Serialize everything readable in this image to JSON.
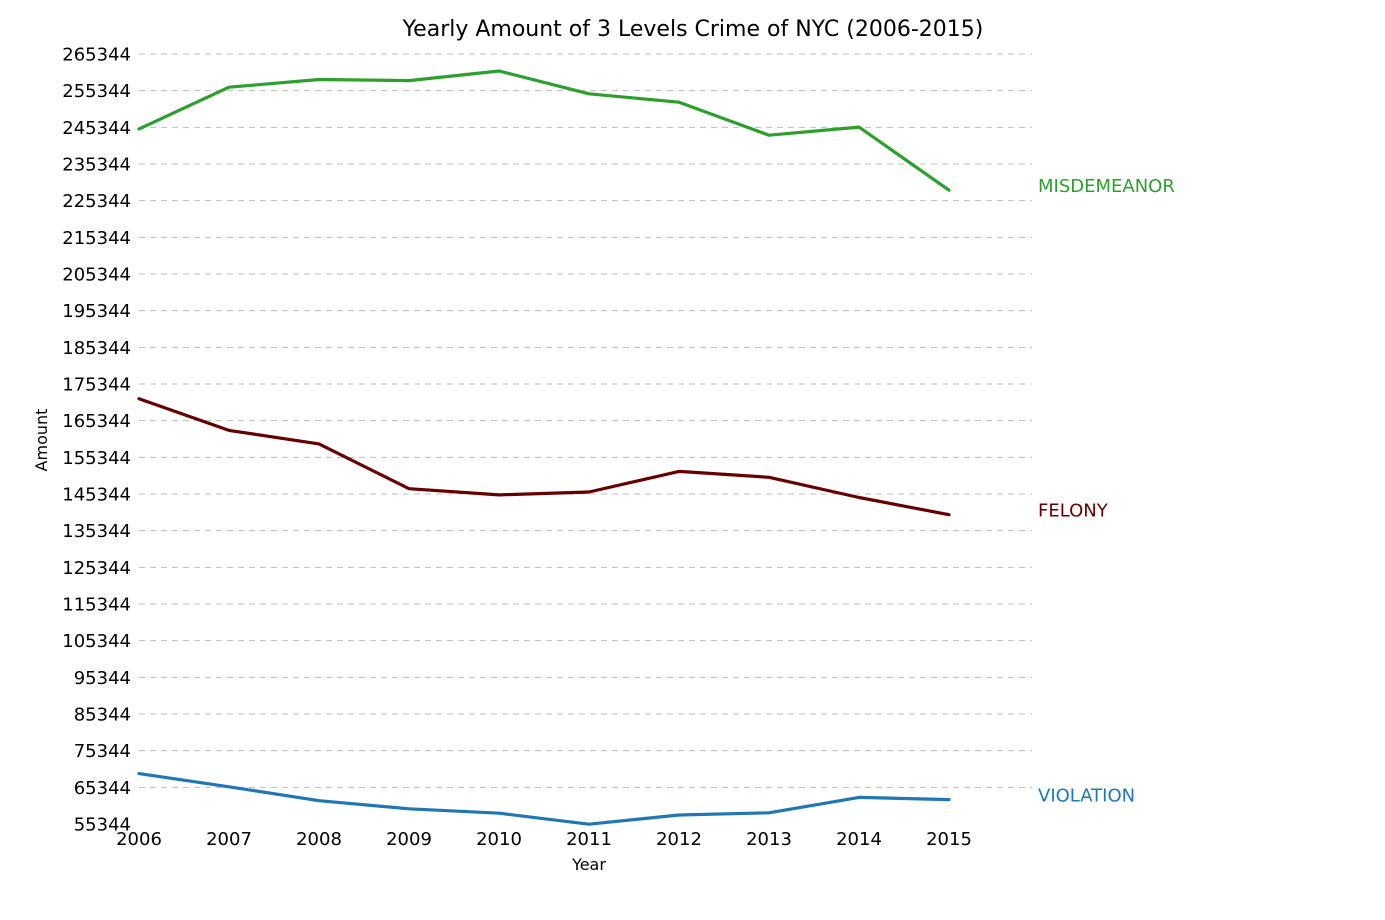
{
  "chart_data": {
    "type": "line",
    "title": "Yearly Amount of 3 Levels Crime of NYC (2006-2015)",
    "xlabel": "Year",
    "ylabel": "Amount",
    "x": [
      2006,
      2007,
      2008,
      2009,
      2010,
      2011,
      2012,
      2013,
      2014,
      2015
    ],
    "x_ticks": [
      "2006",
      "2007",
      "2008",
      "2009",
      "2010",
      "2011",
      "2012",
      "2013",
      "2014",
      "2015"
    ],
    "y_ticks": [
      "55344",
      "65344",
      "75344",
      "85344",
      "95344",
      "105344",
      "115344",
      "125344",
      "135344",
      "145344",
      "155344",
      "165344",
      "175344",
      "185344",
      "195344",
      "205344",
      "215344",
      "225344",
      "235344",
      "245344",
      "255344",
      "265344"
    ],
    "ylim": [
      55344,
      265344
    ],
    "xlim": [
      2006,
      2015
    ],
    "grid": "horizontal dashed",
    "legend": "inline labels at right end of lines",
    "series": [
      {
        "name": "MISDEMEANOR",
        "color": "#2ca02c",
        "values": [
          244900,
          256300,
          258400,
          258100,
          260700,
          254500,
          252200,
          243200,
          245400,
          228200
        ]
      },
      {
        "name": "FELONY",
        "color": "#660000",
        "values": [
          171300,
          162700,
          159000,
          146800,
          145100,
          145900,
          151500,
          149900,
          144400,
          139700
        ]
      },
      {
        "name": "VIOLATION",
        "color": "#1f77b4",
        "values": [
          69100,
          65500,
          61700,
          59500,
          58300,
          55300,
          57800,
          58400,
          62600,
          62000
        ]
      }
    ]
  }
}
